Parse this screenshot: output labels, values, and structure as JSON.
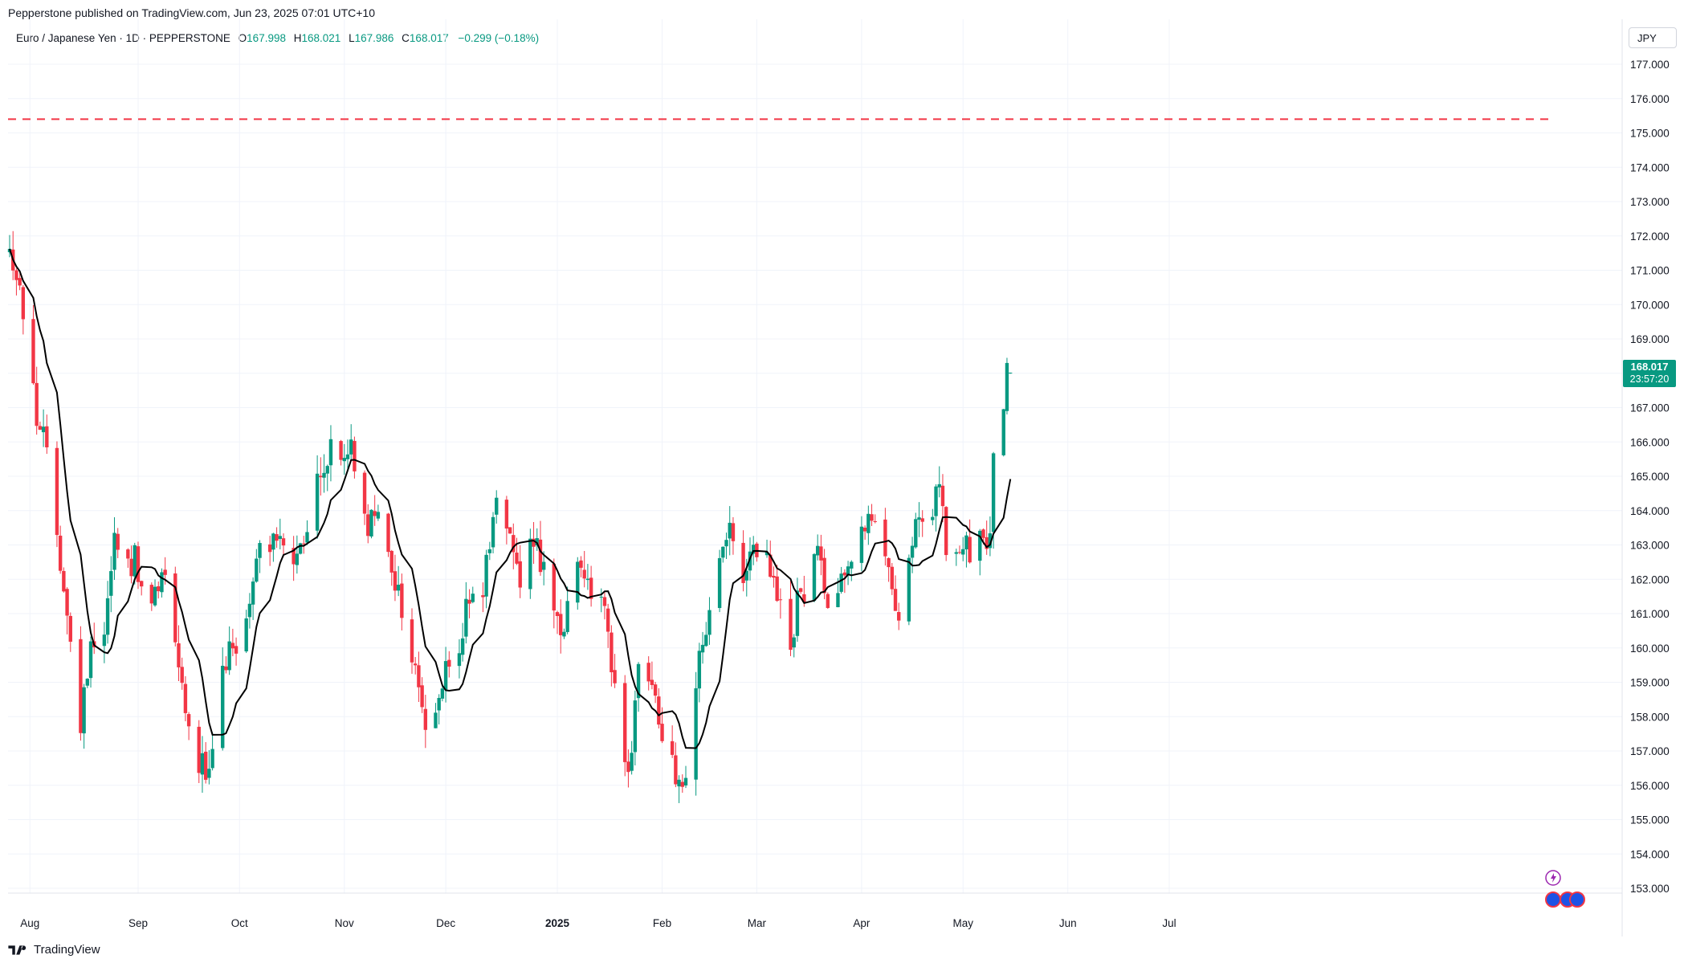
{
  "header": {
    "published": "Pepperstone published on TradingView.com, Jun 23, 2025 07:01 UTC+10"
  },
  "legend": {
    "symbol": "Euro / Japanese Yen · 1D · PEPPERSTONE",
    "open_label": "O",
    "open": "167.998",
    "high_label": "H",
    "high": "168.021",
    "low_label": "L",
    "low": "167.986",
    "close_label": "C",
    "close": "168.017",
    "change": "−0.299 (−0.18%)"
  },
  "currency": "JPY",
  "price_badge": {
    "price": "168.017",
    "countdown": "23:57:20",
    "color": "#089981"
  },
  "brand": {
    "name": "TradingView"
  },
  "colors": {
    "up": "#089981",
    "down": "#f23645",
    "ma": "#000000",
    "dashed_line": "#f23645",
    "grid": "#f0f3fa"
  },
  "chart_data": {
    "type": "candlestick",
    "symbol": "EURJPY",
    "interval": "1D",
    "ylim": [
      152.0,
      177.5
    ],
    "y_ticks": [
      "153.000",
      "154.000",
      "155.000",
      "156.000",
      "157.000",
      "158.000",
      "159.000",
      "160.000",
      "161.000",
      "162.000",
      "163.000",
      "164.000",
      "165.000",
      "166.000",
      "167.000",
      "168.000",
      "169.000",
      "170.000",
      "171.000",
      "172.000",
      "173.000",
      "174.000",
      "175.000",
      "176.000",
      "177.000"
    ],
    "x_labels": [
      {
        "label": "Aug",
        "day": 6
      },
      {
        "label": "Sep",
        "day": 38
      },
      {
        "label": "Oct",
        "day": 68
      },
      {
        "label": "Nov",
        "day": 99
      },
      {
        "label": "Dec",
        "day": 129
      },
      {
        "label": "2025",
        "day": 162
      },
      {
        "label": "Feb",
        "day": 193
      },
      {
        "label": "Mar",
        "day": 221
      },
      {
        "label": "Apr",
        "day": 252
      },
      {
        "label": "May",
        "day": 282
      },
      {
        "label": "Jun",
        "day": 313
      },
      {
        "label": "Jul",
        "day": 343
      }
    ],
    "dashed_level": 175.4,
    "keypoints": [
      [
        0,
        171.6
      ],
      [
        3,
        170.6
      ],
      [
        6,
        168.0
      ],
      [
        8,
        166.8
      ],
      [
        12,
        165.2
      ],
      [
        16,
        161.8
      ],
      [
        18,
        160.0
      ],
      [
        21,
        157.8
      ],
      [
        24,
        160.3
      ],
      [
        28,
        160.6
      ],
      [
        31,
        163.3
      ],
      [
        34,
        162.4
      ],
      [
        37,
        162.6
      ],
      [
        40,
        160.8
      ],
      [
        43,
        161.5
      ],
      [
        46,
        162.4
      ],
      [
        49,
        160.5
      ],
      [
        52,
        158.2
      ],
      [
        56,
        156.8
      ],
      [
        59,
        156.2
      ],
      [
        62,
        158.3
      ],
      [
        65,
        160.5
      ],
      [
        68,
        159.4
      ],
      [
        71,
        161.6
      ],
      [
        74,
        162.9
      ],
      [
        78,
        163.3
      ],
      [
        82,
        162.6
      ],
      [
        85,
        162.4
      ],
      [
        88,
        163.3
      ],
      [
        91,
        164.8
      ],
      [
        95,
        165.7
      ],
      [
        98,
        165.5
      ],
      [
        101,
        165.8
      ],
      [
        103,
        164.2
      ],
      [
        106,
        163.6
      ],
      [
        109,
        163.7
      ],
      [
        112,
        162.9
      ],
      [
        115,
        161.6
      ],
      [
        118,
        160.0
      ],
      [
        121,
        159.0
      ],
      [
        124,
        157.0
      ],
      [
        127,
        158.5
      ],
      [
        130,
        159.6
      ],
      [
        133,
        160.1
      ],
      [
        136,
        161.5
      ],
      [
        139,
        160.8
      ],
      [
        142,
        163.3
      ],
      [
        145,
        164.6
      ],
      [
        148,
        163.5
      ],
      [
        151,
        162.0
      ],
      [
        154,
        163.6
      ],
      [
        157,
        162.6
      ],
      [
        160,
        161.3
      ],
      [
        163,
        160.1
      ],
      [
        166,
        161.5
      ],
      [
        169,
        162.5
      ],
      [
        172,
        161.6
      ],
      [
        174,
        162.0
      ],
      [
        177,
        160.2
      ],
      [
        180,
        158.6
      ],
      [
        182,
        156.4
      ],
      [
        184,
        157.2
      ],
      [
        186,
        159.8
      ],
      [
        189,
        159.1
      ],
      [
        191,
        158.3
      ],
      [
        194,
        157.3
      ],
      [
        197,
        156.4
      ],
      [
        200,
        156.3
      ],
      [
        202,
        157.1
      ],
      [
        204,
        159.8
      ],
      [
        207,
        160.8
      ],
      [
        210,
        162.4
      ],
      [
        213,
        163.2
      ],
      [
        216,
        162.2
      ],
      [
        219,
        162.5
      ],
      [
        222,
        162.8
      ],
      [
        225,
        162.3
      ],
      [
        228,
        161.0
      ],
      [
        231,
        160.1
      ],
      [
        233,
        161.3
      ],
      [
        236,
        162.0
      ],
      [
        239,
        162.6
      ],
      [
        242,
        161.6
      ],
      [
        245,
        162.0
      ],
      [
        248,
        162.4
      ],
      [
        251,
        163.6
      ],
      [
        254,
        163.6
      ],
      [
        257,
        163.2
      ],
      [
        260,
        162.2
      ],
      [
        263,
        161.1
      ],
      [
        266,
        162.6
      ],
      [
        269,
        163.8
      ],
      [
        272,
        163.0
      ],
      [
        275,
        164.9
      ],
      [
        277,
        163.0
      ],
      [
        280,
        162.4
      ],
      [
        282,
        162.9
      ],
      [
        285,
        162.7
      ],
      [
        288,
        163.2
      ],
      [
        290,
        163.2
      ],
      [
        292,
        167.5
      ],
      [
        293,
        167.0
      ],
      [
        294,
        167.2
      ],
      [
        296,
        168.0
      ]
    ]
  }
}
